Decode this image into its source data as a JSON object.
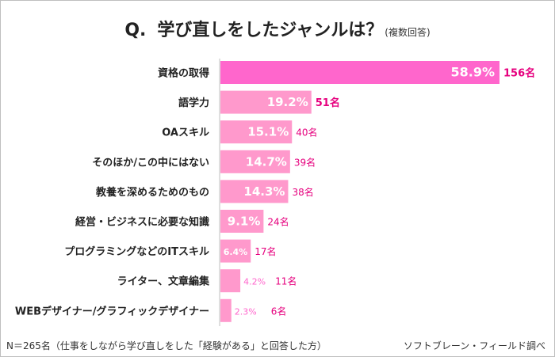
{
  "title": {
    "q": "Q.",
    "main": "学び直しをしたジャンルは？",
    "sub": "(複数回答)"
  },
  "chart_data": {
    "type": "bar",
    "orientation": "horizontal",
    "categories": [
      "資格の取得",
      "語学力",
      "OAスキル",
      "そのほか/この中にはない",
      "教養を深めるためのもの",
      "経営・ビジネスに必要な知識",
      "プログラミングなどのITスキル",
      "ライター、文章編集",
      "WEBデザイナー/グラフィックデザイナー"
    ],
    "values": [
      58.9,
      19.2,
      15.1,
      14.7,
      14.3,
      9.1,
      6.4,
      4.2,
      2.3
    ],
    "value_labels": [
      "58.9%",
      "19.2%",
      "15.1%",
      "14.7%",
      "14.3%",
      "9.1%",
      "6.4%",
      "4.2%",
      "2.3%"
    ],
    "counts": [
      "156名",
      "51名",
      "40名",
      "39名",
      "38名",
      "24名",
      "17名",
      "11名",
      "6名"
    ],
    "colors": {
      "highlight_bar": "#ff66cc",
      "bar": "#ff99cc",
      "count_text": "#e6007e",
      "value_text": "#ffffff",
      "value_text_light": "#ff66cc"
    }
  },
  "footer": {
    "sample": "N＝265名（仕事をしながら学び直しをした「経験がある」と回答した方）",
    "source": "ソフトブレーン・フィールド調べ"
  }
}
